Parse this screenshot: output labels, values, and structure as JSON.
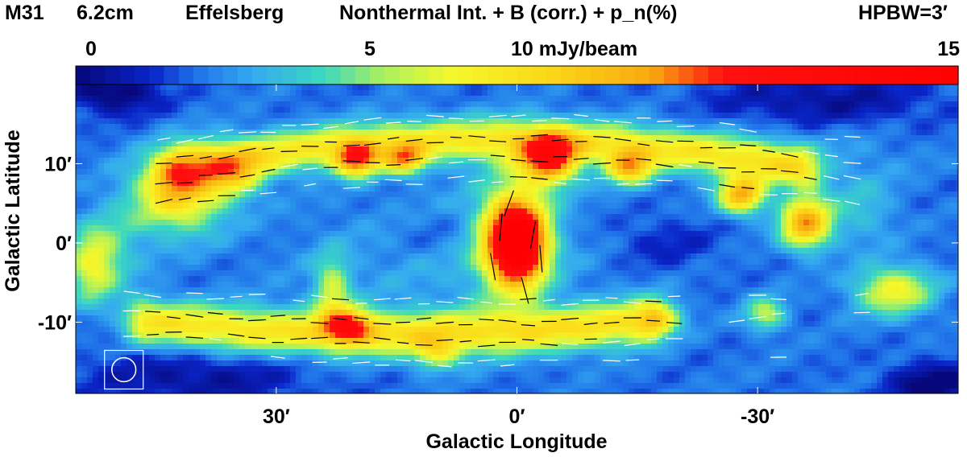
{
  "chart_data": {
    "type": "heatmap",
    "title": {
      "object": "M31",
      "wavelength": "6.2cm",
      "telescope": "Effelsberg",
      "description": "Nonthermal Int. + B (corr.) + p_n(%)",
      "beam": "HPBW=3′"
    },
    "xlabel": "Galactic Longitude",
    "ylabel": "Galactic Latitude",
    "x_ticks": [
      {
        "value": 30,
        "label": "30′"
      },
      {
        "value": 0,
        "label": "0′"
      },
      {
        "value": -30,
        "label": "-30′"
      }
    ],
    "y_ticks": [
      {
        "value": 10,
        "label": "10′"
      },
      {
        "value": 0,
        "label": "0′"
      },
      {
        "value": -10,
        "label": "-10′"
      }
    ],
    "xlim": [
      55,
      -55
    ],
    "ylim": [
      -19,
      20
    ],
    "colorbar": {
      "unit": "mJy/beam",
      "range": [
        0,
        15
      ],
      "tick_labels": [
        {
          "value": 0,
          "label": "0"
        },
        {
          "value": 5,
          "label": "5"
        },
        {
          "value": 10,
          "label": "10 mJy/beam"
        },
        {
          "value": 15,
          "label": "15"
        }
      ],
      "stops": [
        {
          "v": 0,
          "c": "#06077a"
        },
        {
          "v": 1.3,
          "c": "#0a25c8"
        },
        {
          "v": 2.0,
          "c": "#1f6fe8"
        },
        {
          "v": 3.0,
          "c": "#34a9f0"
        },
        {
          "v": 4.2,
          "c": "#3ad8c0"
        },
        {
          "v": 5.2,
          "c": "#a8f060"
        },
        {
          "v": 6.4,
          "c": "#f4f82c"
        },
        {
          "v": 8.0,
          "c": "#fbd818"
        },
        {
          "v": 9.8,
          "c": "#f8a810"
        },
        {
          "v": 11.0,
          "c": "#ff1010"
        },
        {
          "v": 15.0,
          "c": "#ff0000"
        }
      ]
    },
    "background_level": 2.1,
    "emission_components": [
      {
        "name": "northern arm",
        "type": "arc",
        "x0": 42,
        "x1": -35,
        "yc": 9.5,
        "curve": 3.5,
        "sigma": 1.9,
        "amp": 5.0
      },
      {
        "name": "southern arm",
        "type": "arc",
        "x0": 46,
        "x1": -16,
        "yc": -10.0,
        "curve": -1.5,
        "sigma": 2.0,
        "amp": 5.2
      },
      {
        "name": "northeast lobe",
        "type": "blob",
        "x": 42,
        "y": 6.5,
        "sx": 4.0,
        "sy": 3.5,
        "amp": 6.0
      },
      {
        "name": "east knot",
        "type": "blob",
        "x": 35,
        "y": 8.5,
        "sx": 2.5,
        "sy": 2.0,
        "amp": 3.5
      },
      {
        "name": "knot N1",
        "type": "blob",
        "x": 20,
        "y": 10.5,
        "sx": 1.8,
        "sy": 1.5,
        "amp": 7.0
      },
      {
        "name": "knot N2",
        "type": "blob",
        "x": 14,
        "y": 10.5,
        "sx": 1.8,
        "sy": 1.3,
        "amp": 5.5
      },
      {
        "name": "knot N3",
        "type": "blob",
        "x": -4,
        "y": 10.5,
        "sx": 2.5,
        "sy": 2.2,
        "amp": 8.5
      },
      {
        "name": "knot N4",
        "type": "blob",
        "x": -14,
        "y": 9.5,
        "sx": 2.0,
        "sy": 1.5,
        "amp": 6.0
      },
      {
        "name": "knot N5",
        "type": "blob",
        "x": -28,
        "y": 6.0,
        "sx": 2.0,
        "sy": 1.6,
        "amp": 7.0
      },
      {
        "name": "knot N6",
        "type": "blob",
        "x": -36,
        "y": 2.5,
        "sx": 2.2,
        "sy": 2.2,
        "amp": 7.5
      },
      {
        "name": "nucleus",
        "type": "blob",
        "x": 0,
        "y": 0,
        "sx": 2.4,
        "sy": 3.5,
        "amp": 14.0
      },
      {
        "name": "nucleus extension",
        "type": "blob",
        "x": 1,
        "y": 1.5,
        "sx": 3.5,
        "sy": 6.0,
        "amp": 2.5
      },
      {
        "name": "knot S1",
        "type": "blob",
        "x": 21,
        "y": -10.5,
        "sx": 2.0,
        "sy": 1.4,
        "amp": 6.0
      },
      {
        "name": "spur S",
        "type": "blob",
        "x": 23,
        "y": -6.0,
        "sx": 1.6,
        "sy": 3.0,
        "amp": 3.5
      },
      {
        "name": "east arm end",
        "type": "blob",
        "x": 53,
        "y": -3.0,
        "sx": 2.2,
        "sy": 3.2,
        "amp": 4.0
      },
      {
        "name": "west arm end",
        "type": "blob",
        "x": -47,
        "y": -6.0,
        "sx": 3.5,
        "sy": 2.2,
        "amp": 4.5
      },
      {
        "name": "knot SW",
        "type": "blob",
        "x": -31,
        "y": -9.0,
        "sx": 1.8,
        "sy": 1.5,
        "amp": 3.5
      },
      {
        "name": "knot SC",
        "type": "blob",
        "x": -18,
        "y": -9.5,
        "sx": 2.0,
        "sy": 1.5,
        "amp": 3.0
      },
      {
        "name": "knot S2",
        "type": "blob",
        "x": 10,
        "y": -14.0,
        "sx": 2.0,
        "sy": 1.5,
        "amp": 3.0
      },
      {
        "name": "ring west",
        "type": "blob",
        "x": -43,
        "y": 4.0,
        "sx": 3.0,
        "sy": 3.0,
        "amp": 1.5
      },
      {
        "name": "ring east",
        "type": "blob",
        "x": 50,
        "y": 0.0,
        "sx": 3.0,
        "sy": 4.0,
        "amp": 1.5
      },
      {
        "name": "inner ring",
        "type": "blob",
        "x": 8,
        "y": -2.0,
        "sx": 14.0,
        "sy": 6.0,
        "amp": 0.9
      },
      {
        "name": "northwest patch",
        "type": "blob",
        "x": -38,
        "y": 11.0,
        "sx": 8.0,
        "sy": 3.0,
        "amp": 0.8
      },
      {
        "name": "field dip NE",
        "type": "blob",
        "x": 50,
        "y": 19.0,
        "sx": 4.0,
        "sy": 2.0,
        "amp": -2.4
      },
      {
        "name": "field dip NW",
        "type": "blob",
        "x": -38,
        "y": 18.0,
        "sx": 10.0,
        "sy": 2.5,
        "amp": -1.6
      },
      {
        "name": "field dip SE",
        "type": "blob",
        "x": 40,
        "y": -17.0,
        "sx": 10.0,
        "sy": 2.5,
        "amp": -1.6
      },
      {
        "name": "field dip SW",
        "type": "blob",
        "x": -52,
        "y": -18.0,
        "sx": 4.0,
        "sy": 2.0,
        "amp": -2.4
      },
      {
        "name": "inner dip",
        "type": "blob",
        "x": -18,
        "y": 0.0,
        "sx": 5.0,
        "sy": 2.5,
        "amp": -1.0
      },
      {
        "name": "inner dip 2",
        "type": "blob",
        "x": 10,
        "y": 1.0,
        "sx": 4.0,
        "sy": 2.0,
        "amp": -0.8
      }
    ],
    "field_arms": [
      {
        "name": "north",
        "x0": 44,
        "x1": -44,
        "yc": 10.0,
        "curve": 3.0,
        "half_width": 5.0,
        "step": 2.6
      },
      {
        "name": "south",
        "x0": 48,
        "x1": -44,
        "yc": -9.5,
        "curve": -1.2,
        "half_width": 4.5,
        "step": 2.6
      }
    ],
    "nucleus_vectors": [
      {
        "x": 2,
        "y": 2,
        "angle": 85
      },
      {
        "x": -2,
        "y": 1,
        "angle": 80
      },
      {
        "x": 3,
        "y": -3,
        "angle": 100
      },
      {
        "x": -3,
        "y": -2,
        "angle": 95
      },
      {
        "x": 1,
        "y": 5,
        "angle": 70
      },
      {
        "x": -1,
        "y": -6,
        "angle": 105
      }
    ],
    "beam": {
      "x": 49,
      "y": -16,
      "fwhm": 3
    }
  }
}
